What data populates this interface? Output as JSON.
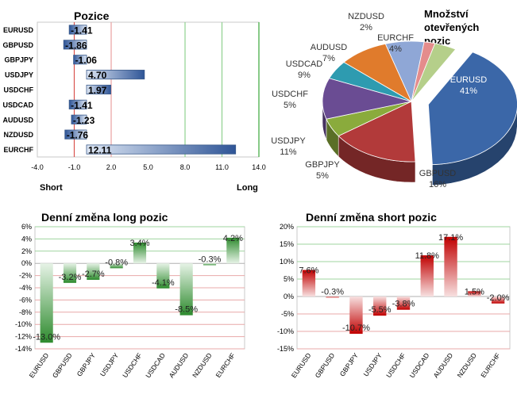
{
  "chart_data": [
    {
      "type": "bar",
      "orientation": "horizontal",
      "title": "Pozice",
      "categories": [
        "EURUSD",
        "GBPUSD",
        "GBPJPY",
        "USDJPY",
        "USDCHF",
        "USDCAD",
        "AUDUSD",
        "NZDUSD",
        "EURCHF"
      ],
      "values": [
        -1.41,
        -1.86,
        -1.06,
        4.7,
        1.97,
        -1.41,
        -1.23,
        -1.76,
        12.11
      ],
      "value_labels": [
        "-1.41",
        "-1.86",
        "-1.06",
        "4.70",
        "1.97",
        "-1.41",
        "-1.23",
        "-1.76",
        "12.11"
      ],
      "xlim": [
        -4.0,
        14.0
      ],
      "xticks": [
        "-4.0",
        "-1.0",
        "2.0",
        "5.0",
        "8.0",
        "11.0",
        "14.0"
      ],
      "xtick_values": [
        -4,
        -1,
        2,
        5,
        8,
        11,
        14
      ],
      "left_label": "Short",
      "right_label": "Long",
      "reference_lines": [
        {
          "value": -1.0,
          "color": "#d9534f"
        },
        {
          "value": 2.0,
          "color": "#e8a0a0"
        },
        {
          "value": 8.0,
          "color": "#8fd18f"
        },
        {
          "value": 11.0,
          "color": "#8fd18f"
        },
        {
          "value": 14.0,
          "color": "#3aa63a"
        }
      ],
      "colors": {
        "bar_dark": "#2f5597",
        "bar_light": "#dfe8f5"
      }
    },
    {
      "type": "pie",
      "title": "Množství otevřených pozic",
      "title_lines": [
        "Množství",
        "otevřených",
        "pozic"
      ],
      "labels": [
        "EURUSD",
        "GBPUSD",
        "GBPJPY",
        "USDJPY",
        "USDCHF",
        "USDCAD",
        "AUDUSD",
        "NZDUSD",
        "EURCHF"
      ],
      "values": [
        41,
        16,
        5,
        11,
        5,
        9,
        7,
        2,
        4
      ],
      "value_labels": [
        "41%",
        "16%",
        "5%",
        "11%",
        "5%",
        "9%",
        "7%",
        "2%",
        "4%"
      ],
      "colors": [
        "#3b67a8",
        "#b23a3a",
        "#8aab3c",
        "#6a4c93",
        "#2e9bb0",
        "#e07b2c",
        "#8fa7d6",
        "#e48c8c",
        "#b5cf8a"
      ]
    },
    {
      "type": "bar",
      "title": "Denní změna long pozic",
      "categories": [
        "EURUSD",
        "GBPUSD",
        "GBPJPY",
        "USDJPY",
        "USDCHF",
        "USDCAD",
        "AUDUSD",
        "NZDUSD",
        "EURCHF"
      ],
      "values": [
        -13.0,
        -3.2,
        -2.7,
        -0.8,
        3.4,
        -4.1,
        -8.5,
        -0.3,
        4.2
      ],
      "value_labels": [
        "-13.0%",
        "-3.2%",
        "-2.7%",
        "-0.8%",
        "3.4%",
        "-4.1%",
        "-8.5%",
        "-0.3%",
        "4.2%"
      ],
      "ylim": [
        -14,
        6
      ],
      "yticks": [
        "6%",
        "4%",
        "2%",
        "0%",
        "-2%",
        "-4%",
        "-6%",
        "-8%",
        "-10%",
        "-12%",
        "-14%"
      ],
      "ytick_values": [
        6,
        4,
        2,
        0,
        -2,
        -4,
        -6,
        -8,
        -10,
        -12,
        -14
      ],
      "grid": true,
      "colors": {
        "bar": "#2e8b2e",
        "bar_light": "#e6f3e6",
        "grid_pos": "#9fd49f",
        "grid_neg": "#e8a8a8"
      }
    },
    {
      "type": "bar",
      "title": "Denní změna short pozic",
      "categories": [
        "EURUSD",
        "GBPUSD",
        "GBPJPY",
        "USDJPY",
        "USDCHF",
        "USDCAD",
        "AUDUSD",
        "NZDUSD",
        "EURCHF"
      ],
      "values": [
        7.6,
        -0.3,
        -10.7,
        -5.5,
        -3.8,
        11.8,
        17.1,
        1.5,
        -2.0
      ],
      "value_labels": [
        "7.6%",
        "-0.3%",
        "-10.7%",
        "-5.5%",
        "-3.8%",
        "11.8%",
        "17.1%",
        "1.5%",
        "-2.0%"
      ],
      "ylim": [
        -15,
        20
      ],
      "yticks": [
        "20%",
        "15%",
        "10%",
        "5%",
        "0%",
        "-5%",
        "-10%",
        "-15%"
      ],
      "ytick_values": [
        20,
        15,
        10,
        5,
        0,
        -5,
        -10,
        -15
      ],
      "grid": true,
      "colors": {
        "bar": "#c00000",
        "bar_light": "#f7e0e0",
        "grid_pos": "#9fd49f",
        "grid_neg": "#e8a8a8"
      }
    }
  ]
}
